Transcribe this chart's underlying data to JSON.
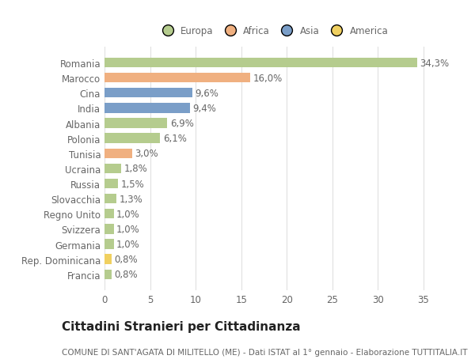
{
  "categories": [
    "Francia",
    "Rep. Dominicana",
    "Germania",
    "Svizzera",
    "Regno Unito",
    "Slovacchia",
    "Russia",
    "Ucraina",
    "Tunisia",
    "Polonia",
    "Albania",
    "India",
    "Cina",
    "Marocco",
    "Romania"
  ],
  "values": [
    0.8,
    0.8,
    1.0,
    1.0,
    1.0,
    1.3,
    1.5,
    1.8,
    3.0,
    6.1,
    6.9,
    9.4,
    9.6,
    16.0,
    34.3
  ],
  "labels": [
    "0,8%",
    "0,8%",
    "1,0%",
    "1,0%",
    "1,0%",
    "1,3%",
    "1,5%",
    "1,8%",
    "3,0%",
    "6,1%",
    "6,9%",
    "9,4%",
    "9,6%",
    "16,0%",
    "34,3%"
  ],
  "colors": [
    "#b5cc8e",
    "#f0d060",
    "#b5cc8e",
    "#b5cc8e",
    "#b5cc8e",
    "#b5cc8e",
    "#b5cc8e",
    "#b5cc8e",
    "#f0b080",
    "#b5cc8e",
    "#b5cc8e",
    "#7a9ec8",
    "#7a9ec8",
    "#f0b080",
    "#b5cc8e"
  ],
  "legend_labels": [
    "Europa",
    "Africa",
    "Asia",
    "America"
  ],
  "legend_colors": [
    "#b5cc8e",
    "#f0b080",
    "#7a9ec8",
    "#f0d060"
  ],
  "title": "Cittadini Stranieri per Cittadinanza",
  "subtitle": "COMUNE DI SANT'AGATA DI MILITELLO (ME) - Dati ISTAT al 1° gennaio - Elaborazione TUTTITALIA.IT",
  "xlim": [
    0,
    37
  ],
  "xticks": [
    0,
    5,
    10,
    15,
    20,
    25,
    30,
    35
  ],
  "bg_color": "#ffffff",
  "plot_bg_color": "#ffffff",
  "bar_height": 0.65,
  "label_fontsize": 8.5,
  "tick_fontsize": 8.5,
  "title_fontsize": 11,
  "subtitle_fontsize": 7.5
}
